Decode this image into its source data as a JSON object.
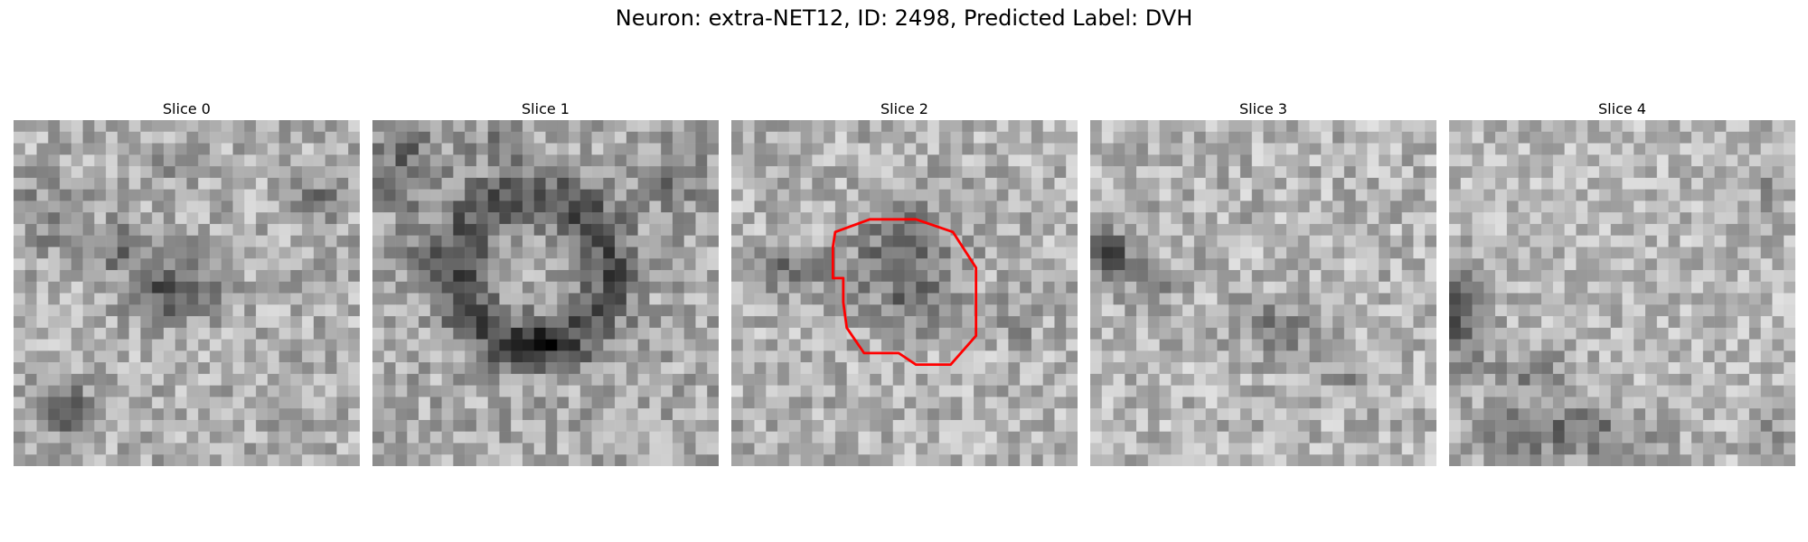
{
  "figure": {
    "title": "Neuron: extra-NET12, ID: 2498, Predicted Label: DVH"
  },
  "slices": [
    {
      "title": "Slice 0",
      "has_roi": false
    },
    {
      "title": "Slice 1",
      "has_roi": false
    },
    {
      "title": "Slice 2",
      "has_roi": true
    },
    {
      "title": "Slice 3",
      "has_roi": false
    },
    {
      "title": "Slice 4",
      "has_roi": false
    }
  ],
  "roi": {
    "color": "#ff0000"
  },
  "colormap": "gray"
}
